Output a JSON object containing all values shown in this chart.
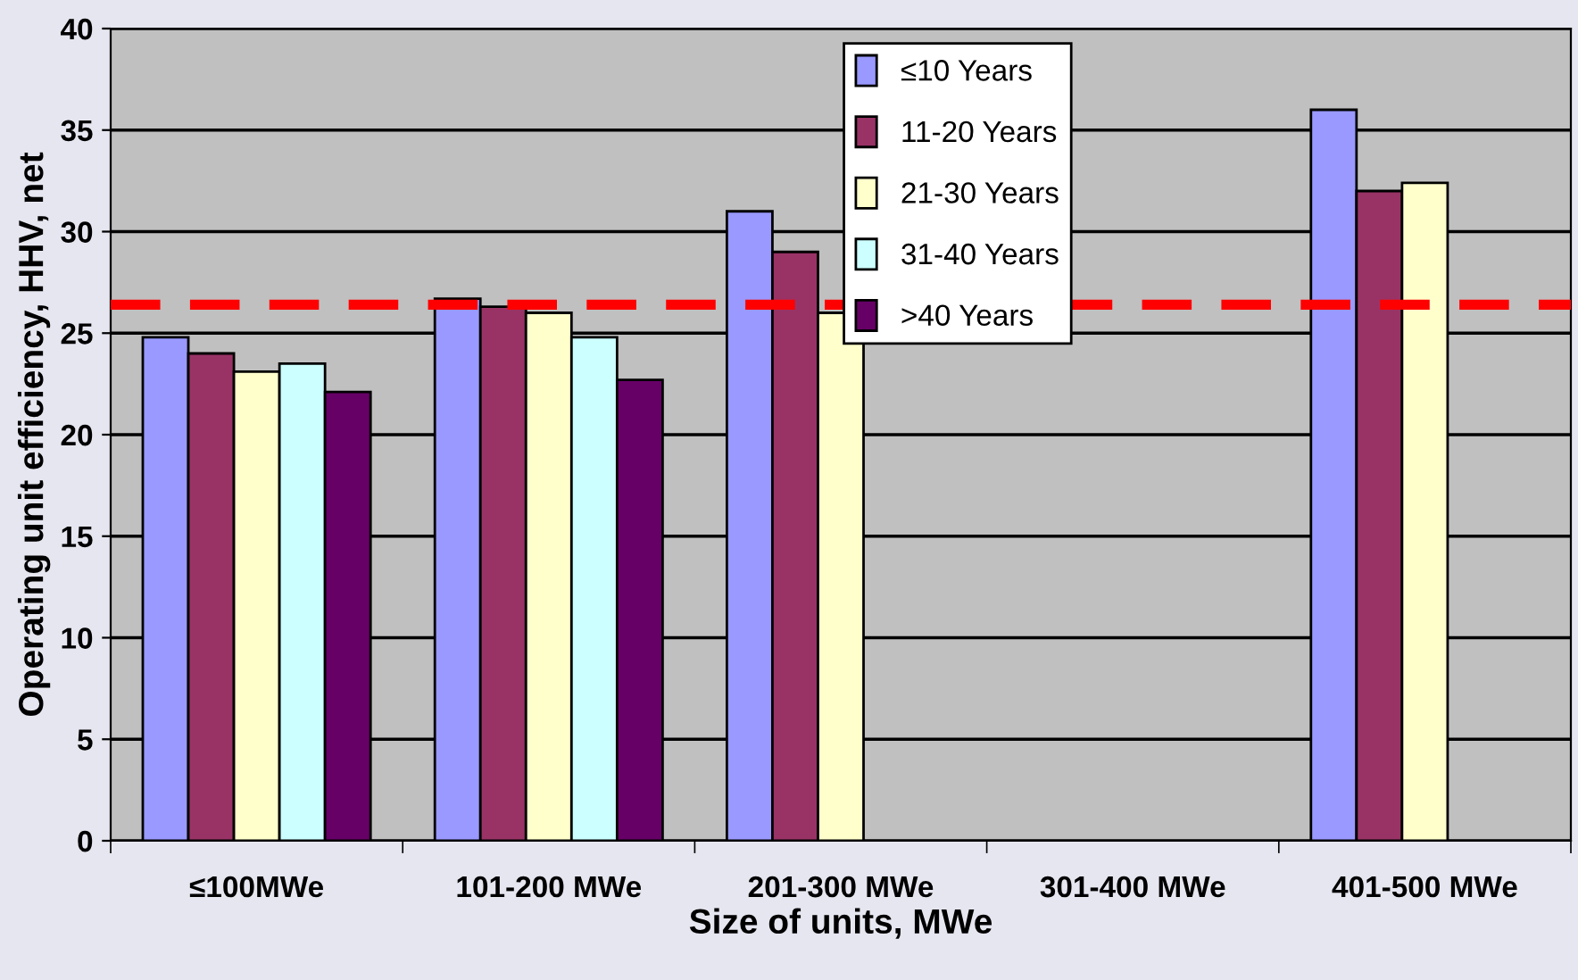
{
  "chart_data": {
    "type": "bar",
    "xlabel": "Size of units, MWe",
    "ylabel": "Operating unit efficiency, HHV, net",
    "categories": [
      "≤100MWe",
      "101-200 MWe",
      "201-300 MWe",
      "301-400 MWe",
      "401-500 MWe"
    ],
    "series": [
      {
        "name": "≤10 Years",
        "color": "#9999ff",
        "values": [
          24.8,
          26.7,
          31.0,
          null,
          36.0
        ]
      },
      {
        "name": "11-20 Years",
        "color": "#993366",
        "values": [
          24.0,
          26.3,
          29.0,
          null,
          32.0
        ]
      },
      {
        "name": "21-30 Years",
        "color": "#ffffcc",
        "values": [
          23.1,
          26.0,
          26.0,
          null,
          32.4
        ]
      },
      {
        "name": "31-40 Years",
        "color": "#ccffff",
        "values": [
          23.5,
          24.8,
          null,
          null,
          null
        ]
      },
      {
        "name": ">40 Years",
        "color": "#660066",
        "values": [
          22.1,
          22.7,
          null,
          null,
          null
        ]
      }
    ],
    "ylim": [
      0,
      40
    ],
    "yticks": [
      0,
      5,
      10,
      15,
      20,
      25,
      30,
      35,
      40
    ],
    "grid": "y",
    "legend": "top",
    "ref_lines": [
      {
        "axis": "y",
        "value": 26.4,
        "color": "#ff0000",
        "line_style": "dashed"
      }
    ]
  }
}
